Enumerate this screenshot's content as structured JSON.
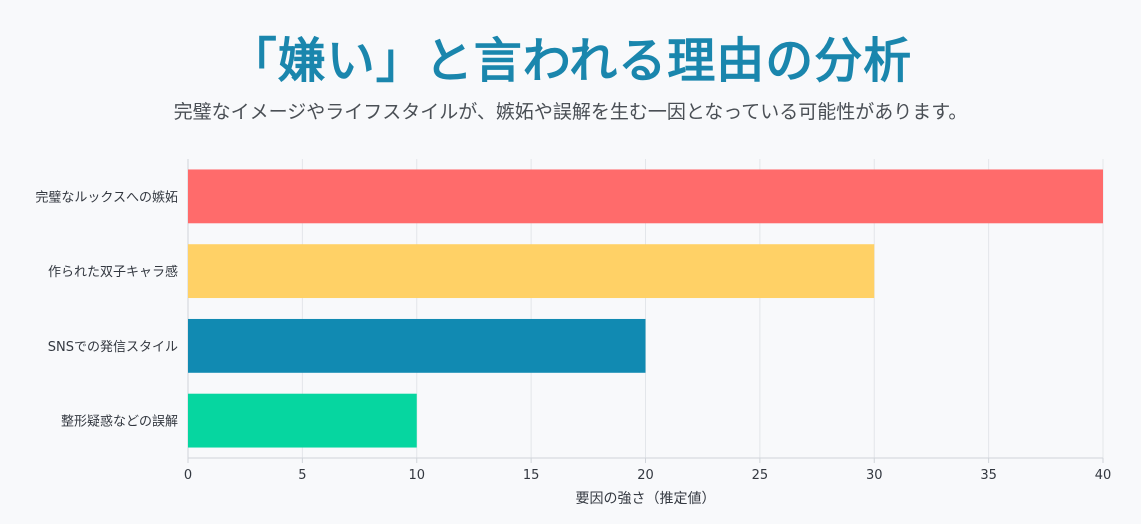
{
  "title": "「嫌い」と言われる理由の分析",
  "subtitle": "完璧なイメージやライフスタイルが、嫉妬や誤解を生む一因となっている可能性があります。",
  "chart_data": {
    "type": "bar",
    "orientation": "horizontal",
    "categories": [
      "完璧なルックスへの嫉妬",
      "作られた双子キャラ感",
      "SNSでの発信スタイル",
      "整形疑惑などの誤解"
    ],
    "values": [
      40,
      30,
      20,
      10
    ],
    "colors": [
      "#ff6b6b",
      "#ffd166",
      "#118ab2",
      "#06d6a0"
    ],
    "xlabel": "要因の強さ（推定値）",
    "ylabel": "",
    "xlim": [
      0,
      40
    ],
    "xticks": [
      0,
      5,
      10,
      15,
      20,
      25,
      30,
      35,
      40
    ],
    "grid": true,
    "legend": "none"
  }
}
